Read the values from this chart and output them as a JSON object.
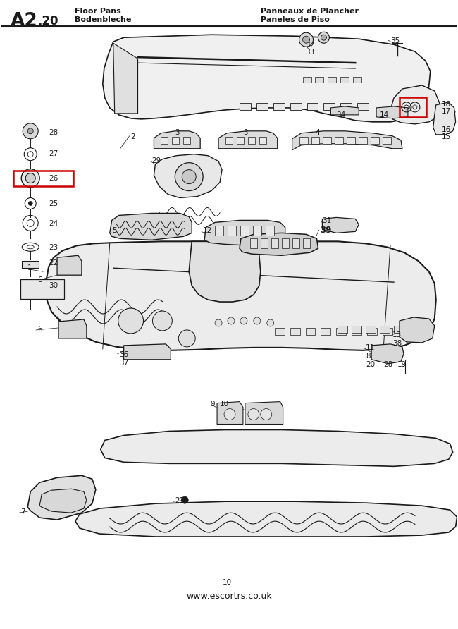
{
  "title_left_main": "A2",
  "title_left_sub": ".20",
  "title_left_line1": "Floor Pans",
  "title_left_line2": "Bodenbleche",
  "title_right_line1": "Panneaux de Plancher",
  "title_right_line2": "Paneles de Piso",
  "footer_page": "10",
  "footer_url": "www.escortrs.co.uk",
  "bg_color": "#ffffff",
  "lc": "#1a1a1a",
  "red": "#cc0000",
  "fig_w": 6.5,
  "fig_h": 8.92,
  "dpi": 100
}
